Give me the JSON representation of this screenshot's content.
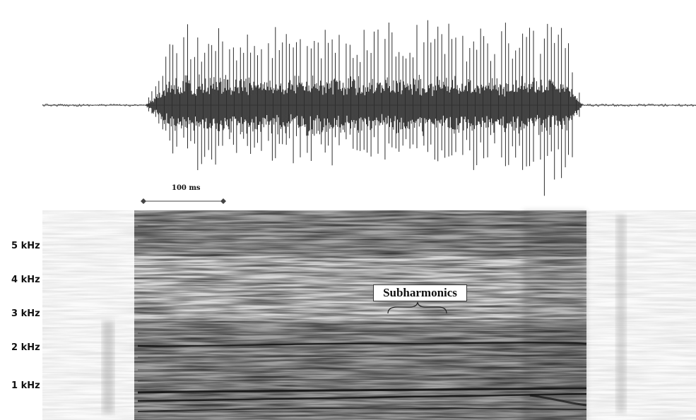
{
  "waveform": {
    "time_scale_label": "100 ms"
  },
  "spectrogram": {
    "frequency_labels": [
      "5 kHz",
      "4 kHz",
      "3 kHz",
      "2 kHz",
      "1 kHz"
    ],
    "annotation": "Subharmonics"
  },
  "colors": {
    "ink": "#2a2a2a",
    "background": "#ffffff"
  }
}
